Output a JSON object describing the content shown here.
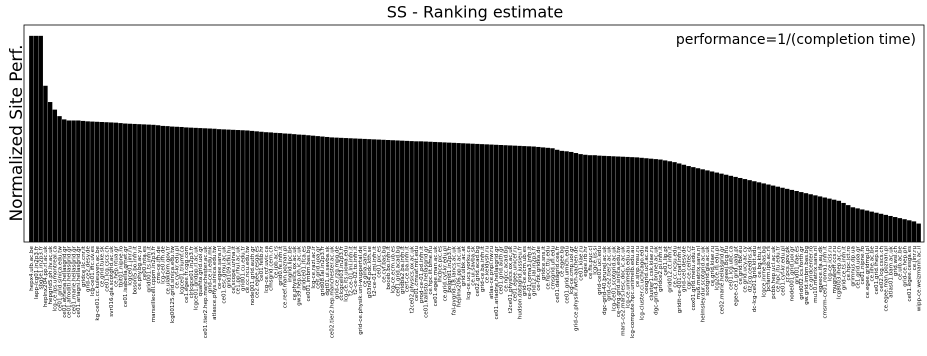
{
  "chart_data": {
    "type": "bar",
    "title": "SS - Ranking estimate",
    "ylabel": "Normalized Site Perf.",
    "annotation": "performance=1/(completion time)",
    "color": "#000000",
    "ylim": [
      0,
      1
    ],
    "categories": [
      "hepx4.ulb.ac.be",
      "lapp-lcg01.in2p3.fr",
      "sbgse1.in2p3.fr",
      "heplnx204.pp.rl.ac.uk",
      "hepgrid5.ph.liv.ac.uk",
      "lcg-ce.lps.umontreal.ca",
      "ce01.grid.sinica.edu.tw",
      "ce01.athena.hellasgrid.gr",
      "ce01.afroditi.hellasgrid.gr",
      "ce01.marie.hellasgrid.gr",
      "ce01.ariagni.hellasgrid.gr",
      "gridce.ilc.cnr.it",
      "grid-ce2.desy.de",
      "lcg-ce01.ific.uv.es",
      "kg-ce01.cc.kuleuven.ac.be",
      "ce.grid.tuke.sk",
      "ce01.lcg.cscs.ch",
      "svr016.gla.scotgrid.ac.uk",
      "ce.hep.ntua.gr",
      "tbit01.nipne.ro",
      "ce01.isabella.grnet.gr",
      "lcgce01.jinr.ru",
      "bosonl5.bo.infn.it",
      "ce.phy.bg.ac.yu",
      "ce00.inta.es",
      "grid001.ts.infn.it",
      "marseillecell.cppm.in2p3.fr",
      "cms-ce.ifh.de",
      "lcg-ce0.ifh.de",
      "ce.ulakbim.gov.tr",
      "lcg00125.grid.sinica.edu.tw",
      "ce.cyf-kr.edu.pl",
      "lcgce01.triumf.ca",
      "ce1.egee.fr.cgg.com",
      "clrlcgce01.in2p3.fr",
      "lcgce01.gridpp.rl.ac.uk",
      "quanta.grid.uoi.gr",
      "ce01.tier2.hep.manchester.ac.uk",
      "grid-ce.ii.edu.mk",
      "atlasce.phys.sinica.edu.tw",
      "ce-egee.sara.nl",
      "ce01.esc.qmul.ac.uk",
      "grid109.kfki.hu",
      "ce.scope.unina.it",
      "ce1.pp.rhul.ac.uk",
      "grid01.cu.edu.tr",
      "ce.cc.ncu.edu.tw",
      "node001.grid.auth.gr",
      "ce2.egee.cesga.es",
      "ce01.fesb.hr",
      "lcg-ce.rcf.uvic.ca",
      "cmsgrid.cern.ch",
      "ce.ipb.ac.rs",
      "grid0.fe.infn.it",
      "ce.reef.man.poznan.pl",
      "ingrid.lipc.be",
      "ce.physics.ox.ac.uk",
      "gw39.hep.ph.ic.ac.uk",
      "gridce01.ifca.es",
      "ce001.imbm.bas.bg",
      "lcg-ce.razi.ac.ir",
      "ceit.grid.uoa.gr",
      "grid08.lal.in2p3.fr",
      "dgt01.ui.savba.sk",
      "ce02.tier2.hep.manchester.ac.uk",
      "grid-ce.rzg.mpg.de",
      "cclcgceli03.in2p3.fr",
      "lcg-ce.its.uiowa.edu",
      "t2-ce-01.lnl.infn.it",
      "t2-ce-02.to.infn.it",
      "grid-ce.physik.uni-wuppertal.de",
      "ce.gina.sara.nl",
      "g03n04.pdc.kth.se",
      "t2-ce-01.mi.infn.it",
      "ce01.pic.es",
      "ce.cyf.bas.bg",
      "boceb.bo.infn.it",
      "lcg-ce.ecm.ub.es",
      "ce01.grid.acad.bg",
      "gridba2.ba.infn.it",
      "cert-ce.ba.infn.it",
      "t2ce02.physics.ox.ac.uk",
      "ce01.cmsaf.mit.edu",
      "prod-ce-01.pd.infn.it",
      "ce01.kallisto.hellasgrid.gr",
      "ce.hpc.iit.bme.hu",
      "ce01.egee.man.ac.uk",
      "lhcbce.pic.es",
      "ce.grid.cyf-kr.edu.pl",
      "polgrid1.in2p3.fr",
      "fal-pygrid-18.lancs.ac.uk",
      "heplnx206.pp.rl.ac.uk",
      "grid.uibk.ac.at",
      "lcg-ce.ucs.yorku.ca",
      "ce.ui.savba.sk",
      "ce02.grid.acad.bg",
      "grid-ce.ba.infn.it",
      "ce.keldysh.ru",
      "atlas-ce.pnpi.nw.ru",
      "ce01.ariadne.hellasgrid.gr",
      "ce01.grid.auth.gr",
      "ce.ngcc.acad.bg",
      "t2ce01.physics.ox.ac.uk",
      "ce01.egee.unicef.ru",
      "hudson.datagrid.jussieu.fr",
      "grid-ce.ecm.ub.es",
      "ce-01.roma3.infn.it",
      "grid12.lal.in2p3.fr",
      "ce-fzk.gridka.de",
      "gridce.sns.it",
      "ce.hpcc.ttu.edu",
      "cmsgrid.ufl.edu",
      "ce01.datagrid.cea.fr",
      "ce.egee.bg",
      "ce01.grid.umich.edu",
      "lcg-ce.cmp.uoi.gr",
      "grid-ce.physik.rwth-aachen.de",
      "ce01.kiae.ru",
      "egee.irb.hr",
      "ce.fis.puc.cl",
      "lcgce.ijs.si",
      "grid-ce01.uci.edu",
      "dgc-grid-40.brunel.ac.uk",
      "grid-ce2.tier2.ac.uk",
      "lcg-ce01.scotgrid.ac.uk",
      "ce-mrg.grid.sinica.edu.tw",
      "mars-ce2.mars.lesc.doc.ic.ac.uk",
      "lcg-ce.unimelb.edu.au",
      "lcg-compute.hpc.unimelb.edu.au",
      "ce.sinp.msu.ru",
      "lcg-cluster.ci.uchicago.edu",
      "ceogrid.uct.ac.za",
      "cluster1.csk.kiae.ru",
      "dgc-grid-43.brunel.ac.uk",
      "gridce2.pi.infn.it",
      "ce01.lip.pt",
      "grid012.ct.infn.it",
      "ce.cc.ncsu.edu",
      "gridit-ce-001.cnaf.infn.it",
      "grid-ce0.desy.de",
      "cgr-ce.ceitec.cz",
      "cox01.grid.metu.edu.tr",
      "mu6.matrix.sara.nl",
      "helmsley.dur.scotgrid.ac.uk",
      "scotgrid.gla.ac.uk",
      "ce.grid.kiae.ru",
      "lcg2ce.ifj.edu.pl",
      "ce02.marie.hellasgrid.gr",
      "ceeej.bcg.hu",
      "ce01.lcg.ubc.ca",
      "egee-ce1.grid.ualg.pt",
      "ce.grid.fbk.eu",
      "ce.grid.ucy.ac.cy",
      "dz.lcg.ceedns.sk",
      "dc-lcg-ce01.grid.kit.edu",
      "ce.bg.ktu.lt",
      "lcgce.inrne.bas.bg",
      "pcfarm.ipb.ac.rs",
      "pcbb.hep.ucl.ac.uk",
      "ce.hpc.itu.edu.tr",
      "ce01.cyf-kr.edu.pl",
      "cr.pcs.gov.pk",
      "node001.grid.uoi.gr",
      "grid01.ifae.es",
      "grid002.ics.forth.gr",
      "gw.grid.imbm.bas.bg",
      "ce.gridcenter.ro",
      "mu10.matrix.sara.nl",
      "egeece.ifa.au.dk",
      "cmsrm-ce01.roma1.infn.it",
      "lcg-ce.icis.ru",
      "mugnaroff.ccs.ru",
      "lcg8003.ihep.ac.cn",
      "grid-ce.ts.infn.it",
      "ce.hpc.ict.ro",
      "grimnus.dp.ua",
      "ce1.grid.uoa.gr",
      "ce01.nipne.ro",
      "ce.egee.gridmpl.pl",
      "ce.iihe.ac.be",
      "ce01.grid.ihep.su",
      "ce02.lcg.cscs.ch",
      "ce.egee.man.poznan.pl",
      "atlas01.bam.ac.uk",
      "grid.wsl.ch",
      "ce.ulb.ac.be",
      "grid-ce.hep.ph",
      "ce01.egee.cesga.es",
      "ce.jinr.ru",
      "wipp-ce.weizmann.ac.il"
    ],
    "values": [
      0.95,
      0.95,
      0.95,
      0.72,
      0.645,
      0.61,
      0.58,
      0.565,
      0.56,
      0.56,
      0.56,
      0.558,
      0.556,
      0.555,
      0.554,
      0.553,
      0.552,
      0.551,
      0.55,
      0.548,
      0.546,
      0.545,
      0.544,
      0.543,
      0.542,
      0.541,
      0.54,
      0.538,
      0.535,
      0.534,
      0.532,
      0.531,
      0.53,
      0.528,
      0.527,
      0.526,
      0.525,
      0.524,
      0.523,
      0.522,
      0.52,
      0.519,
      0.518,
      0.517,
      0.516,
      0.515,
      0.514,
      0.512,
      0.51,
      0.508,
      0.506,
      0.505,
      0.503,
      0.502,
      0.5,
      0.499,
      0.497,
      0.495,
      0.494,
      0.492,
      0.49,
      0.488,
      0.486,
      0.484,
      0.482,
      0.481,
      0.48,
      0.479,
      0.478,
      0.477,
      0.476,
      0.475,
      0.474,
      0.473,
      0.472,
      0.471,
      0.47,
      0.469,
      0.468,
      0.467,
      0.466,
      0.465,
      0.464,
      0.464,
      0.463,
      0.462,
      0.461,
      0.46,
      0.459,
      0.458,
      0.457,
      0.456,
      0.455,
      0.454,
      0.453,
      0.452,
      0.451,
      0.45,
      0.449,
      0.448,
      0.447,
      0.446,
      0.445,
      0.444,
      0.443,
      0.442,
      0.441,
      0.44,
      0.438,
      0.436,
      0.434,
      0.432,
      0.425,
      0.42,
      0.418,
      0.415,
      0.41,
      0.405,
      0.402,
      0.4,
      0.4,
      0.398,
      0.397,
      0.396,
      0.395,
      0.394,
      0.393,
      0.392,
      0.391,
      0.39,
      0.388,
      0.386,
      0.384,
      0.382,
      0.38,
      0.376,
      0.372,
      0.368,
      0.362,
      0.356,
      0.35,
      0.345,
      0.34,
      0.335,
      0.33,
      0.325,
      0.32,
      0.315,
      0.31,
      0.305,
      0.3,
      0.295,
      0.29,
      0.285,
      0.28,
      0.275,
      0.27,
      0.265,
      0.26,
      0.255,
      0.25,
      0.245,
      0.24,
      0.235,
      0.23,
      0.225,
      0.22,
      0.215,
      0.21,
      0.205,
      0.2,
      0.195,
      0.19,
      0.18,
      0.17,
      0.16,
      0.155,
      0.15,
      0.145,
      0.14,
      0.135,
      0.13,
      0.125,
      0.12,
      0.115,
      0.11,
      0.105,
      0.1,
      0.095,
      0.085
    ]
  }
}
